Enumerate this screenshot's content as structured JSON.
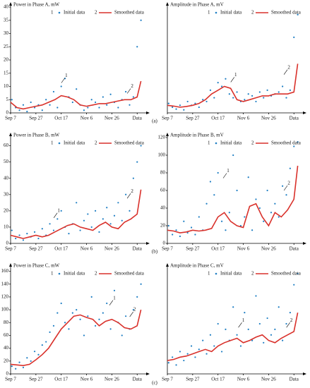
{
  "panel_labels": [
    "(a)",
    "(b)",
    "(c)"
  ],
  "chart_data": [
    {
      "type": "scatter",
      "title": "Power in Phase A, mW",
      "xlim": [
        0,
        106
      ],
      "ylim": [
        0,
        40
      ],
      "yticks": [
        0,
        5,
        10,
        15,
        20,
        25,
        30,
        35,
        40
      ],
      "xticks": [
        {
          "value": 0,
          "label": "Sep 7"
        },
        {
          "value": 20,
          "label": "Sep 27"
        },
        {
          "value": 40,
          "label": "Oct 17"
        },
        {
          "value": 60,
          "label": "Nov 6"
        },
        {
          "value": 80,
          "label": "Nov 26"
        },
        {
          "value": 100,
          "label": "Data"
        }
      ],
      "series": [
        {
          "name": "Initial data",
          "legend_number": "1",
          "kind": "scatter",
          "color": "#1f7fc4",
          "x": [
            1,
            4,
            7,
            10,
            13,
            16,
            19,
            22,
            25,
            28,
            31,
            34,
            37,
            40,
            43,
            46,
            49,
            52,
            55,
            58,
            61,
            64,
            67,
            70,
            73,
            76,
            79,
            82,
            85,
            88,
            91,
            94,
            97,
            100,
            103
          ],
          "values": [
            5,
            2,
            1,
            3,
            0.5,
            4,
            2,
            3,
            1,
            5,
            3,
            8,
            2,
            10,
            13,
            6,
            4,
            9,
            3,
            1,
            2,
            5,
            4,
            2,
            6,
            3,
            7,
            4,
            2,
            5,
            8,
            3,
            6,
            25,
            35
          ]
        },
        {
          "name": "Smoothed data",
          "legend_number": "2",
          "kind": "line",
          "color": "#d9312b",
          "x": [
            0,
            5,
            10,
            15,
            20,
            25,
            30,
            35,
            40,
            45,
            50,
            55,
            60,
            65,
            70,
            75,
            80,
            85,
            90,
            95,
            100,
            103
          ],
          "values": [
            4,
            2,
            1.5,
            2,
            2.5,
            3,
            4,
            5,
            6.5,
            6,
            5,
            3,
            2.5,
            3,
            3.5,
            3.5,
            4,
            4.5,
            5,
            5,
            6,
            12
          ]
        }
      ],
      "annotations": [
        {
          "text": "1",
          "x": 44,
          "y": 14
        },
        {
          "text": "2",
          "x": 96,
          "y": 10
        }
      ]
    },
    {
      "type": "scatter",
      "title": "Amplitude in Phase A, mV",
      "xlim": [
        0,
        106
      ],
      "ylim": [
        0,
        280
      ],
      "xticks": [
        {
          "value": 0,
          "label": "Sep 7"
        },
        {
          "value": 20,
          "label": "Sep 27"
        },
        {
          "value": 40,
          "label": "Oct 17"
        },
        {
          "value": 60,
          "label": "Nov 6"
        },
        {
          "value": 80,
          "label": "Nov 26"
        },
        {
          "value": 100,
          "label": "Data"
        }
      ],
      "series": [
        {
          "name": "Initial data",
          "legend_number": "1",
          "kind": "scatter",
          "color": "#1f7fc4",
          "x": [
            1,
            4,
            7,
            10,
            13,
            16,
            19,
            22,
            25,
            28,
            31,
            34,
            37,
            40,
            43,
            46,
            49,
            52,
            55,
            58,
            61,
            64,
            67,
            70,
            73,
            76,
            79,
            82,
            85,
            88,
            91,
            94,
            97,
            100,
            103
          ],
          "values": [
            25,
            15,
            10,
            20,
            8,
            30,
            20,
            25,
            15,
            35,
            30,
            60,
            40,
            80,
            70,
            90,
            50,
            40,
            55,
            30,
            35,
            50,
            45,
            30,
            55,
            40,
            60,
            45,
            50,
            55,
            70,
            40,
            60,
            200,
            260
          ]
        },
        {
          "name": "Smoothed data",
          "legend_number": "2",
          "kind": "line",
          "color": "#d9312b",
          "x": [
            0,
            5,
            10,
            15,
            20,
            25,
            30,
            35,
            40,
            45,
            50,
            55,
            60,
            65,
            70,
            75,
            80,
            85,
            90,
            95,
            100,
            103
          ],
          "values": [
            20,
            18,
            15,
            17,
            20,
            25,
            35,
            50,
            60,
            70,
            65,
            35,
            30,
            35,
            40,
            45,
            45,
            50,
            50,
            50,
            55,
            130
          ]
        }
      ],
      "annotations": [
        {
          "text": "1",
          "x": 54,
          "y": 100
        },
        {
          "text": "2",
          "x": 96,
          "y": 120
        }
      ]
    },
    {
      "type": "scatter",
      "title": "Power in Phase B, mW",
      "xlim": [
        0,
        106
      ],
      "ylim": [
        0,
        65
      ],
      "yticks": [
        0,
        10,
        20,
        30,
        40,
        50,
        60
      ],
      "xticks": [
        {
          "value": 0,
          "label": "Sep 7"
        },
        {
          "value": 20,
          "label": "Sep 27"
        },
        {
          "value": 40,
          "label": "Oct 17"
        },
        {
          "value": 60,
          "label": "Nov 6"
        },
        {
          "value": 80,
          "label": "Nov 26"
        },
        {
          "value": 100,
          "label": "Data"
        }
      ],
      "series": [
        {
          "name": "Initial data",
          "legend_number": "1",
          "kind": "scatter",
          "color": "#1f7fc4",
          "x": [
            1,
            4,
            7,
            10,
            13,
            16,
            19,
            22,
            25,
            28,
            31,
            34,
            37,
            40,
            43,
            46,
            49,
            52,
            55,
            58,
            61,
            64,
            67,
            70,
            73,
            76,
            79,
            82,
            85,
            88,
            91,
            94,
            97,
            100,
            103
          ],
          "values": [
            8,
            3,
            5,
            2,
            6,
            4,
            7,
            3,
            9,
            5,
            12,
            8,
            15,
            20,
            10,
            6,
            12,
            25,
            8,
            14,
            18,
            10,
            20,
            7,
            15,
            22,
            12,
            17,
            25,
            14,
            30,
            20,
            40,
            50,
            60
          ]
        },
        {
          "name": "Smoothed data",
          "legend_number": "2",
          "kind": "line",
          "color": "#d9312b",
          "x": [
            0,
            5,
            10,
            15,
            20,
            25,
            30,
            35,
            40,
            45,
            50,
            55,
            60,
            65,
            70,
            75,
            80,
            85,
            90,
            95,
            100,
            103
          ],
          "values": [
            5,
            4,
            3,
            4,
            5,
            4,
            5,
            7,
            9,
            11,
            12,
            10,
            9,
            8,
            11,
            13,
            10,
            9,
            13,
            15,
            18,
            33
          ]
        }
      ],
      "annotations": [
        {
          "text": "1",
          "x": 38,
          "y": 20
        },
        {
          "text": "2",
          "x": 96,
          "y": 32
        }
      ]
    },
    {
      "type": "scatter",
      "title": "Amplitude in Phase B, mV",
      "xlim": [
        0,
        106
      ],
      "ylim": [
        0,
        120
      ],
      "yticks": [
        0,
        20,
        40,
        60,
        80,
        100,
        120
      ],
      "xticks": [
        {
          "value": 0,
          "label": "Sep 7"
        },
        {
          "value": 20,
          "label": "Sep 27"
        },
        {
          "value": 40,
          "label": "Oct 17"
        },
        {
          "value": 60,
          "label": "Nov 6"
        },
        {
          "value": 80,
          "label": "Nov 26"
        },
        {
          "value": 100,
          "label": "Data"
        }
      ],
      "series": [
        {
          "name": "Initial data",
          "legend_number": "1",
          "kind": "scatter",
          "color": "#1f7fc4",
          "x": [
            1,
            4,
            7,
            10,
            13,
            16,
            19,
            22,
            25,
            28,
            31,
            34,
            37,
            40,
            43,
            46,
            49,
            52,
            55,
            58,
            61,
            64,
            67,
            70,
            73,
            76,
            79,
            82,
            85,
            88,
            91,
            94,
            97,
            100,
            103
          ],
          "values": [
            20,
            10,
            15,
            8,
            25,
            12,
            18,
            10,
            30,
            15,
            45,
            70,
            55,
            80,
            25,
            15,
            35,
            100,
            60,
            20,
            30,
            75,
            15,
            50,
            40,
            25,
            60,
            35,
            45,
            30,
            65,
            55,
            85,
            110,
            115
          ]
        },
        {
          "name": "Smoothed data",
          "legend_number": "2",
          "kind": "line",
          "color": "#d9312b",
          "x": [
            0,
            5,
            10,
            15,
            20,
            25,
            30,
            35,
            40,
            45,
            50,
            55,
            60,
            65,
            70,
            75,
            80,
            85,
            90,
            95,
            100,
            103
          ],
          "values": [
            15,
            14,
            12,
            13,
            15,
            14,
            15,
            17,
            30,
            35,
            25,
            20,
            18,
            42,
            45,
            30,
            20,
            35,
            30,
            38,
            50,
            88
          ]
        }
      ],
      "annotations": [
        {
          "text": "1",
          "x": 48,
          "y": 82
        },
        {
          "text": "2",
          "x": 96,
          "y": 68
        }
      ]
    },
    {
      "type": "scatter",
      "title": "Power in Phase C, mW",
      "xlim": [
        0,
        106
      ],
      "ylim": [
        0,
        165
      ],
      "yticks": [
        0,
        20,
        40,
        60,
        80,
        100,
        120,
        140,
        160
      ],
      "xticks": [
        {
          "value": 0,
          "label": "Sep 7"
        },
        {
          "value": 20,
          "label": "Sep 27"
        },
        {
          "value": 40,
          "label": "Oct 17"
        },
        {
          "value": 60,
          "label": "Nov 6"
        },
        {
          "value": 80,
          "label": "Nov 26"
        },
        {
          "value": 100,
          "label": "Data"
        }
      ],
      "series": [
        {
          "name": "Initial data",
          "legend_number": "1",
          "kind": "scatter",
          "color": "#1f7fc4",
          "x": [
            1,
            4,
            7,
            10,
            13,
            16,
            19,
            22,
            25,
            28,
            31,
            34,
            37,
            40,
            43,
            46,
            49,
            52,
            55,
            58,
            61,
            64,
            67,
            70,
            73,
            76,
            79,
            82,
            85,
            88,
            91,
            94,
            97,
            100,
            103
          ],
          "values": [
            12,
            8,
            18,
            10,
            25,
            20,
            35,
            30,
            45,
            50,
            65,
            75,
            95,
            110,
            80,
            70,
            95,
            100,
            85,
            60,
            90,
            120,
            75,
            85,
            95,
            110,
            70,
            130,
            80,
            60,
            90,
            70,
            100,
            120,
            140
          ]
        },
        {
          "name": "Smoothed data",
          "legend_number": "2",
          "kind": "line",
          "color": "#d9312b",
          "x": [
            0,
            5,
            10,
            15,
            20,
            25,
            30,
            35,
            40,
            45,
            50,
            55,
            60,
            65,
            70,
            75,
            80,
            85,
            90,
            95,
            100,
            103
          ],
          "values": [
            15,
            14,
            13,
            15,
            22,
            30,
            40,
            55,
            70,
            80,
            90,
            92,
            88,
            85,
            75,
            82,
            85,
            80,
            72,
            70,
            75,
            100
          ]
        }
      ],
      "annotations": [
        {
          "text": "1",
          "x": 82,
          "y": 118
        },
        {
          "text": "2",
          "x": 98,
          "y": 100
        }
      ]
    },
    {
      "type": "scatter",
      "title": "Amplitude in Phase C, mV",
      "xlim": [
        0,
        106
      ],
      "ylim": [
        0,
        95
      ],
      "xticks": [
        {
          "value": 0,
          "label": "Sep 7"
        },
        {
          "value": 20,
          "label": "Sep 27"
        },
        {
          "value": 40,
          "label": "Oct 17"
        },
        {
          "value": 60,
          "label": "Nov 6"
        },
        {
          "value": 80,
          "label": "Nov 26"
        },
        {
          "value": 100,
          "label": "Data"
        }
      ],
      "series": [
        {
          "name": "Initial data",
          "legend_number": "1",
          "kind": "scatter",
          "color": "#1f7fc4",
          "x": [
            1,
            4,
            7,
            10,
            13,
            16,
            19,
            22,
            25,
            28,
            31,
            34,
            37,
            40,
            43,
            46,
            49,
            52,
            55,
            58,
            61,
            64,
            67,
            70,
            73,
            76,
            79,
            82,
            85,
            88,
            91,
            94,
            97,
            100,
            103
          ],
          "values": [
            10,
            15,
            8,
            20,
            12,
            18,
            25,
            15,
            22,
            30,
            18,
            35,
            25,
            45,
            20,
            40,
            30,
            60,
            35,
            25,
            55,
            40,
            30,
            70,
            45,
            28,
            50,
            35,
            40,
            60,
            30,
            45,
            55,
            80,
            90
          ]
        },
        {
          "name": "Smoothed data",
          "legend_number": "2",
          "kind": "line",
          "color": "#d9312b",
          "x": [
            0,
            5,
            10,
            15,
            20,
            25,
            30,
            35,
            40,
            45,
            50,
            55,
            60,
            65,
            70,
            75,
            80,
            85,
            90,
            95,
            100,
            103
          ],
          "values": [
            12,
            13,
            15,
            16,
            18,
            20,
            22,
            20,
            25,
            28,
            30,
            32,
            28,
            30,
            33,
            35,
            30,
            28,
            32,
            35,
            38,
            55
          ]
        }
      ],
      "annotations": [
        {
          "text": "1",
          "x": 60,
          "y": 48
        },
        {
          "text": "2",
          "x": 98,
          "y": 48
        }
      ]
    }
  ]
}
